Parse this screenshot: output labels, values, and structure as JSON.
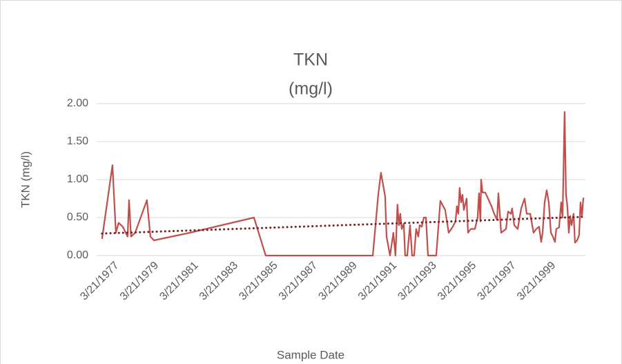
{
  "chart_data": {
    "type": "line",
    "title": "TKN",
    "subtitle": "(mg/l)",
    "x_label": "Sample Date",
    "y_label": "TKN (mg/l)",
    "x": [
      "1976-07-09",
      "1977-01-17",
      "1977-03-21",
      "1977-05-10",
      "1977-07-25",
      "1977-10-23",
      "1977-11-18",
      "1977-12-25",
      "1978-03-10",
      "1978-10-13",
      "1978-12-16",
      "1979-02-19",
      "1980-12-09",
      "1984-03-04",
      "1984-10-07",
      "1990-02-28",
      "1990-06-08",
      "1990-07-28",
      "1990-10-13",
      "1990-11-08",
      "1991-01-11",
      "1991-03-13",
      "1991-04-21",
      "1991-05-28",
      "1991-06-23",
      "1991-07-19",
      "1991-08-14",
      "1991-09-21",
      "1991-10-16",
      "1991-11-23",
      "1992-01-14",
      "1992-02-21",
      "1992-03-29",
      "1992-05-06",
      "1992-06-14",
      "1992-07-09",
      "1992-08-17",
      "1992-09-24",
      "1992-11-02",
      "1992-12-10",
      "1993-03-20",
      "1993-05-10",
      "1993-07-25",
      "1993-10-22",
      "1993-12-25",
      "1994-03-10",
      "1994-04-30",
      "1994-05-25",
      "1994-06-20",
      "1994-07-15",
      "1994-08-10",
      "1994-09-05",
      "1994-09-30",
      "1994-11-20",
      "1994-12-16",
      "1995-02-05",
      "1995-04-21",
      "1995-06-11",
      "1995-07-06",
      "1995-08-01",
      "1995-08-14",
      "1995-09-09",
      "1995-10-29",
      "1995-12-19",
      "1996-02-21",
      "1996-04-11",
      "1996-06-02",
      "1996-06-27",
      "1996-08-17",
      "1996-11-14",
      "1996-12-22",
      "1997-02-12",
      "1997-03-07",
      "1997-04-14",
      "1997-06-17",
      "1997-08-20",
      "1997-10-22",
      "1997-11-30",
      "1998-02-02",
      "1998-04-05",
      "1998-05-25",
      "1998-07-15",
      "1998-08-23",
      "1998-09-18",
      "1998-10-26",
      "1998-12-03",
      "1999-01-10",
      "1999-02-18",
      "1999-03-26",
      "1999-05-03",
      "1999-05-28",
      "1999-07-18",
      "1999-08-26",
      "1999-09-21",
      "1999-10-28",
      "1999-11-23",
      "1999-12-18",
      "2000-01-14",
      "2000-02-08",
      "2000-03-04",
      "2000-04-11",
      "2000-05-06",
      "2000-06-14",
      "2000-07-21",
      "2000-08-16",
      "2000-09-11",
      "2000-10-06",
      "2000-10-19"
    ],
    "series": [
      {
        "color": "#c0504d",
        "values": [
          0.22,
          1.19,
          0.3,
          0.43,
          0.38,
          0.25,
          0.73,
          0.25,
          0.3,
          0.73,
          0.25,
          0.2,
          0.3,
          0.5,
          0.0,
          0.0,
          0.8,
          1.09,
          0.78,
          0.25,
          0.0,
          0.3,
          0.0,
          0.67,
          0.4,
          0.55,
          0.35,
          0.42,
          0.0,
          0.0,
          0.4,
          0.0,
          0.0,
          0.35,
          0.25,
          0.4,
          0.38,
          0.5,
          0.5,
          0.0,
          0.0,
          0.0,
          0.72,
          0.6,
          0.3,
          0.38,
          0.45,
          0.65,
          0.55,
          0.89,
          0.7,
          0.8,
          0.6,
          0.75,
          0.3,
          0.35,
          0.35,
          0.5,
          0.82,
          0.45,
          1.0,
          0.83,
          0.83,
          0.75,
          0.65,
          0.55,
          0.47,
          0.82,
          0.3,
          0.35,
          0.58,
          0.55,
          0.62,
          0.4,
          0.35,
          0.62,
          0.75,
          0.55,
          0.55,
          0.3,
          0.35,
          0.38,
          0.18,
          0.3,
          0.7,
          0.86,
          0.7,
          0.3,
          0.25,
          0.18,
          0.35,
          0.37,
          0.7,
          0.5,
          1.89,
          0.8,
          0.65,
          0.3,
          0.52,
          0.4,
          0.55,
          0.17,
          0.2,
          0.27,
          0.7,
          0.52,
          0.75,
          0.76
        ]
      }
    ],
    "trendline": {
      "color": "#7b2020",
      "style": "dotted",
      "x": [
        "1976-07-09",
        "2000-10-19"
      ],
      "values": [
        0.29,
        0.51
      ]
    },
    "xlim": [
      "1976-04-01",
      "2000-11-14"
    ],
    "xticks": [
      {
        "value": "1977-03-21",
        "label": "3/21/1977"
      },
      {
        "value": "1979-03-21",
        "label": "3/21/1979"
      },
      {
        "value": "1981-03-21",
        "label": "3/21/1981"
      },
      {
        "value": "1983-03-21",
        "label": "3/21/1983"
      },
      {
        "value": "1985-03-21",
        "label": "3/21/1985"
      },
      {
        "value": "1987-03-21",
        "label": "3/21/1987"
      },
      {
        "value": "1989-03-21",
        "label": "3/21/1989"
      },
      {
        "value": "1991-03-21",
        "label": "3/21/1991"
      },
      {
        "value": "1993-03-21",
        "label": "3/21/1993"
      },
      {
        "value": "1995-03-21",
        "label": "3/21/1995"
      },
      {
        "value": "1997-03-21",
        "label": "3/21/1997"
      },
      {
        "value": "1999-03-21",
        "label": "3/21/1999"
      }
    ],
    "ylim": [
      0,
      2
    ],
    "yticks": [
      {
        "value": 0,
        "label": "0.00"
      },
      {
        "value": 0.5,
        "label": "0.50"
      },
      {
        "value": 1,
        "label": "1.00"
      },
      {
        "value": 1.5,
        "label": "1.50"
      },
      {
        "value": 2,
        "label": "2.00"
      }
    ],
    "grid": true
  }
}
